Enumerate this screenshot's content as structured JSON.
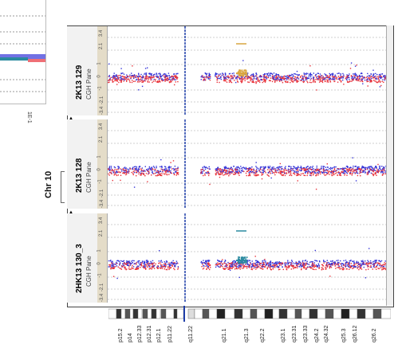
{
  "colors": {
    "red": "#e8323a",
    "blue": "#3434d8",
    "orange": "#d9a640",
    "teal": "#2b8aa0",
    "centromere": "#1f3ea8",
    "grid": "#a0a0a0"
  },
  "chromosome_label": "Chr 10",
  "thumbnail_scale": "1E-1",
  "panels": [
    {
      "name": "2K13 129",
      "subtitle": "CGH Pane",
      "gain": true,
      "gain_color": "orange"
    },
    {
      "name": "2K13 128",
      "subtitle": "CGH Pane",
      "gain": false
    },
    {
      "name": "2HK13 130_3",
      "subtitle": "CGH Pane",
      "gain": true,
      "gain_color": "teal"
    }
  ],
  "scale_ticks": [
    "3.4",
    "2.1",
    "1",
    "0",
    "-1",
    "-2.1",
    "-3.4"
  ],
  "bands": [
    "p15.2",
    "p14",
    "p12.33",
    "p12.31",
    "p12.1",
    "p11.22",
    "q11.22",
    "q21.1",
    "q21.3",
    "q22.2",
    "q23.1",
    "q23.31",
    "q23.33",
    "q24.2",
    "q24.32",
    "q25.3",
    "q26.12",
    "q26.2"
  ]
}
